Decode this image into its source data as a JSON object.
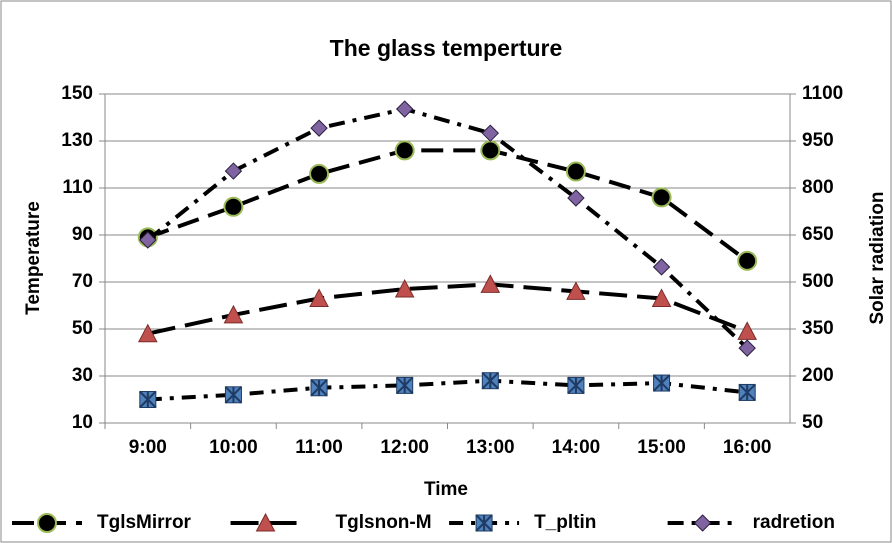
{
  "chart_data": {
    "type": "line",
    "title": "The glass temperture",
    "x_label": "Time",
    "y_label": "Temperature",
    "y2_label": "Solar radiation",
    "categories": [
      "9:00",
      "10:00",
      "11:00",
      "12:00",
      "13:00",
      "14:00",
      "15:00",
      "16:00"
    ],
    "ylim": [
      10,
      150
    ],
    "yticks": [
      10,
      30,
      50,
      70,
      90,
      110,
      130,
      150
    ],
    "y2lim": [
      50,
      1100
    ],
    "y2ticks": [
      50,
      200,
      350,
      500,
      650,
      800,
      950,
      1100
    ],
    "grid": true,
    "legend": "bottom",
    "series": [
      {
        "name": "TglsMirror",
        "color": "#000000",
        "values": [
          89,
          102,
          116,
          126,
          126,
          117,
          106,
          79
        ]
      },
      {
        "name": "Tglsnon-M",
        "color": "#c0504d",
        "values": [
          48,
          56,
          63,
          67,
          69,
          66,
          63,
          49
        ]
      },
      {
        "name": "T_pltin",
        "color": "#4f81bd",
        "values": [
          20,
          22,
          25,
          26,
          28,
          26,
          27,
          23
        ]
      },
      {
        "name": "radretion",
        "color": "#8064a2",
        "axis": "y2",
        "values": [
          634,
          854,
          991,
          1052,
          975,
          768,
          548,
          289
        ]
      }
    ]
  }
}
